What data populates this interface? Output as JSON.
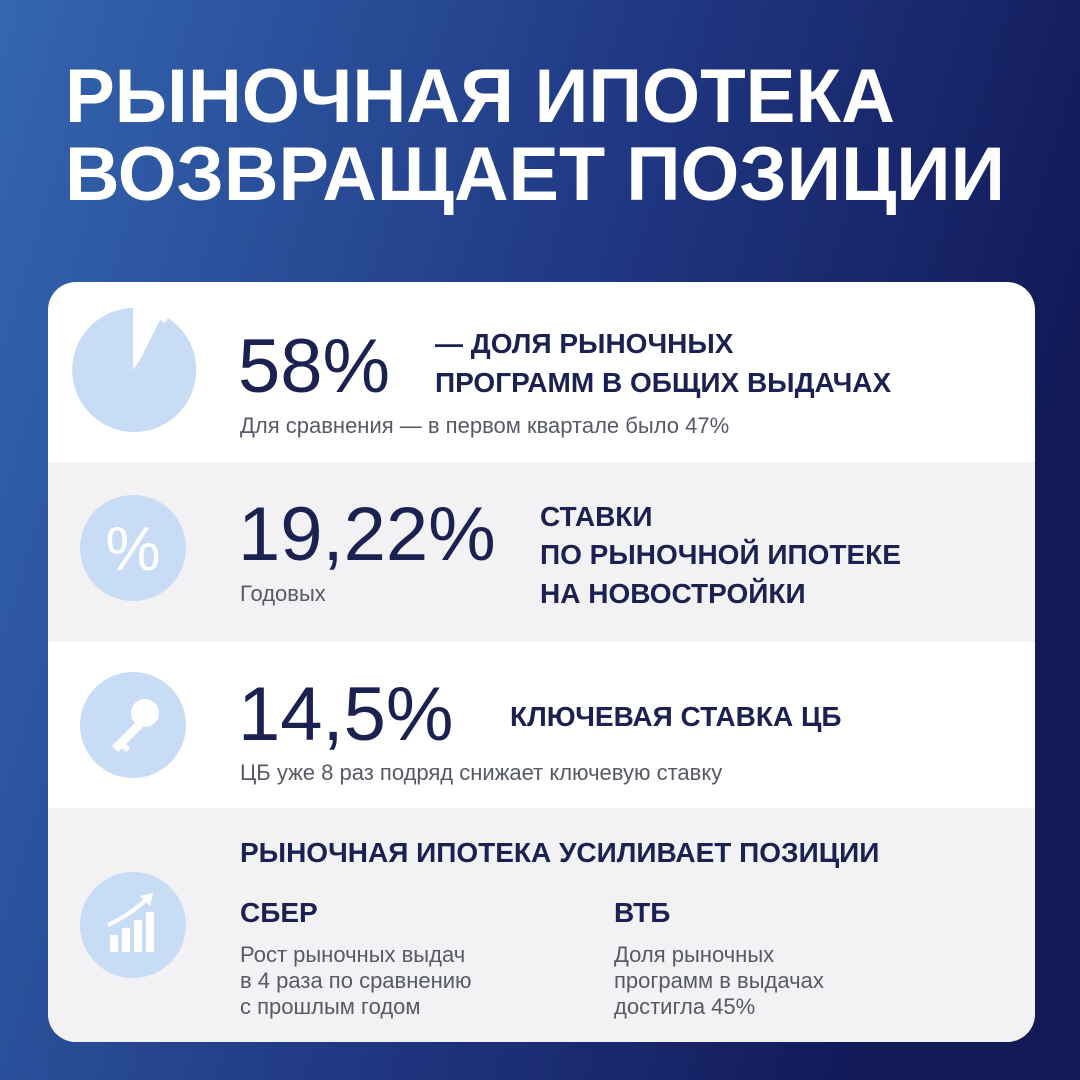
{
  "header": {
    "title_lines": [
      "РЫНОЧНАЯ ИПОТЕКА",
      "ВОЗВРАЩАЕТ ПОЗИЦИИ"
    ]
  },
  "rows": [
    {
      "value": "58%",
      "label_lines": [
        "— ДОЛЯ РЫНОЧНЫХ",
        "ПРОГРАММ В ОБЩИХ ВЫДАЧАХ"
      ],
      "note": "Для сравнения — в первом квартале было 47%"
    },
    {
      "value": "19,22%",
      "label_lines": [
        "СТАВКИ",
        "ПО РЫНОЧНОЙ ИПОТЕКЕ",
        "НА НОВОСТРОЙКИ"
      ],
      "note": "Годовых"
    },
    {
      "value": "14,5%",
      "label_lines": [
        "КЛЮЧЕВАЯ СТАВКА ЦБ"
      ],
      "note": "ЦБ уже 8 раз подряд снижает ключевую ставку"
    }
  ],
  "summary": {
    "title": "РЫНОЧНАЯ ИПОТЕКА УСИЛИВАЕТ ПОЗИЦИИ",
    "columns": [
      {
        "name": "СБЕР",
        "text_lines": [
          "Рост рыночных выдач",
          "в 4 раза по сравнению",
          "с прошлым годом"
        ]
      },
      {
        "name": "ВТБ",
        "text_lines": [
          "Доля рыночных",
          "программ в выдачах",
          "достигла 45%"
        ]
      }
    ]
  }
}
